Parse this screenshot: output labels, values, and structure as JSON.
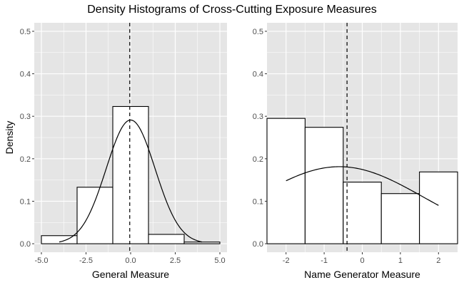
{
  "chart_data": {
    "type": "bar",
    "title": "Density Histograms of Cross-Cutting Exposure Measures",
    "shared_ylabel": "Density",
    "panel_background": "#e5e5e5",
    "grid_color": "#ffffff",
    "bar_fill": "#ffffff",
    "bar_stroke": "#000000",
    "panels": [
      {
        "xlabel": "General Measure",
        "xlim": [
          -5.4,
          5.4
        ],
        "ylim": [
          -0.02,
          0.52
        ],
        "xticks": [
          -5.0,
          -2.5,
          0.0,
          2.5,
          5.0
        ],
        "xtick_labels": [
          "-5.0",
          "-2.5",
          "0.0",
          "2.5",
          "5.0"
        ],
        "yticks": [
          0.0,
          0.1,
          0.2,
          0.3,
          0.4,
          0.5
        ],
        "ytick_labels": [
          "0.0",
          "0.1",
          "0.2",
          "0.3",
          "0.4",
          "0.5"
        ],
        "bins": [
          {
            "x0": -5.0,
            "x1": -3.0,
            "density": 0.019
          },
          {
            "x0": -3.0,
            "x1": -1.0,
            "density": 0.133
          },
          {
            "x0": -1.0,
            "x1": 1.0,
            "density": 0.323
          },
          {
            "x0": 1.0,
            "x1": 3.0,
            "density": 0.022
          },
          {
            "x0": 3.0,
            "x1": 5.0,
            "density": 0.004
          }
        ],
        "mean_line_x": -0.05,
        "density_curve": {
          "type": "normal",
          "mean": 0.0,
          "sd": 1.37,
          "x_range": [
            -4.0,
            4.0
          ]
        }
      },
      {
        "xlabel": "Name Generator Measure",
        "xlim": [
          -2.5,
          2.5
        ],
        "ylim": [
          -0.02,
          0.52
        ],
        "xticks": [
          -2,
          -1,
          0,
          1,
          2
        ],
        "xtick_labels": [
          "-2",
          "-1",
          "0",
          "1",
          "2"
        ],
        "yticks": [
          0.0,
          0.1,
          0.2,
          0.3,
          0.4,
          0.5
        ],
        "ytick_labels": [
          "0.0",
          "0.1",
          "0.2",
          "0.3",
          "0.4",
          "0.5"
        ],
        "bins": [
          {
            "x0": -2.5,
            "x1": -1.5,
            "density": 0.295
          },
          {
            "x0": -1.5,
            "x1": -0.5,
            "density": 0.274
          },
          {
            "x0": -0.5,
            "x1": 0.5,
            "density": 0.145
          },
          {
            "x0": 0.5,
            "x1": 1.5,
            "density": 0.118
          },
          {
            "x0": 1.5,
            "x1": 2.5,
            "density": 0.169
          }
        ],
        "mean_line_x": -0.4,
        "density_curve": {
          "type": "normal",
          "mean": -0.6,
          "sd": 2.2,
          "x_range": [
            -2.0,
            2.0
          ]
        }
      }
    ]
  }
}
